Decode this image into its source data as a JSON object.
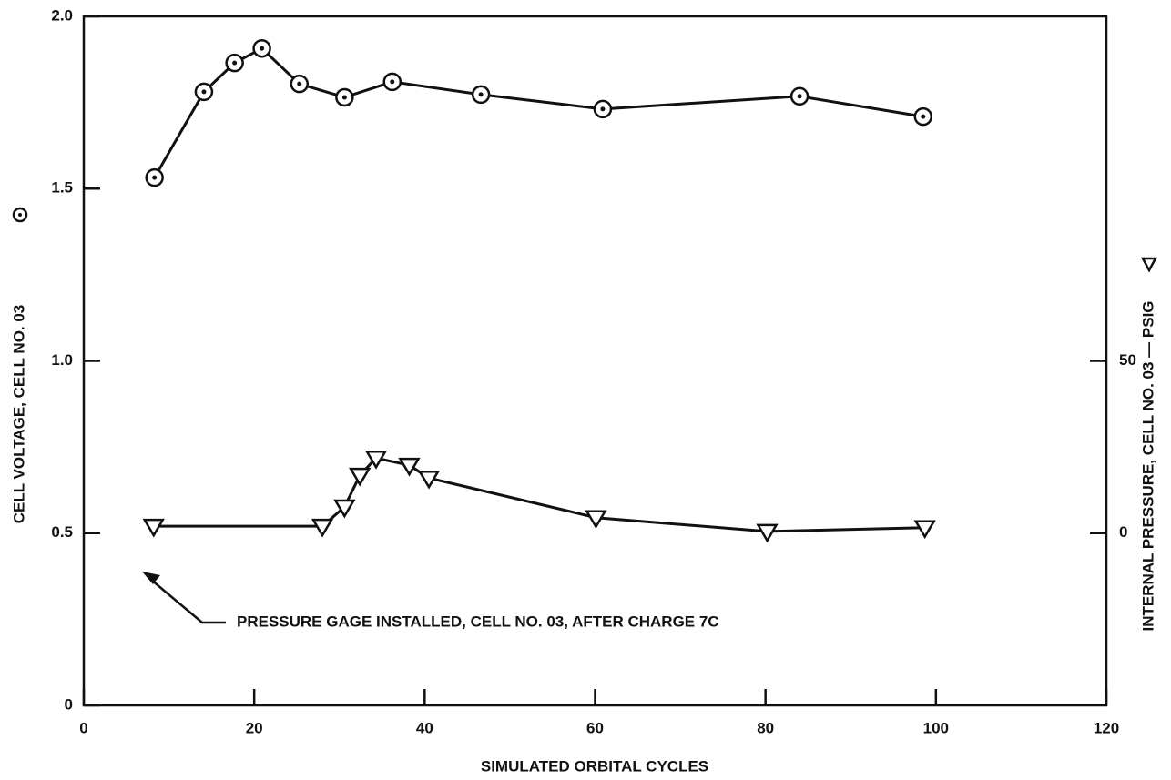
{
  "chart_data": {
    "type": "line",
    "xlabel": "SIMULATED ORBITAL CYCLES",
    "ylabel": "CELL VOLTAGE, CELL NO. 03",
    "y2label": "INTERNAL PRESSURE, CELL NO. 03 — PSIG",
    "annotation": "PRESSURE GAGE INSTALLED, CELL NO. 03, AFTER CHARGE 7C",
    "xlim": [
      0,
      120
    ],
    "xticks": [
      0,
      20,
      40,
      60,
      80,
      100,
      120
    ],
    "ylim": [
      0,
      2
    ],
    "yticks": [
      0,
      0.5,
      {
        "value": 1,
        "label": "1.0"
      },
      1.5,
      {
        "value": 2,
        "label": "2.0"
      }
    ],
    "y2lim": [
      -50,
      150
    ],
    "y2ticks": [
      0,
      50
    ],
    "series": [
      {
        "color": "#111111",
        "marker": "circle",
        "x": [
          8.3,
          14.1,
          17.7,
          20.9,
          25.3,
          30.6,
          36.2,
          46.6,
          60.9,
          84.0,
          98.5
        ],
        "values": [
          1.532,
          1.781,
          1.865,
          1.907,
          1.804,
          1.765,
          1.81,
          1.773,
          1.731,
          1.768,
          1.709
        ]
      },
      {
        "color": "#111111",
        "marker": "triangle",
        "axis": "y2",
        "x": [
          8.2,
          28.0,
          30.6,
          32.4,
          34.3,
          38.2,
          40.5,
          60.1,
          80.2,
          98.7
        ],
        "values": [
          2,
          2,
          7.6,
          16.8,
          21.8,
          19.7,
          16,
          4.5,
          0.5,
          1.6
        ]
      }
    ]
  }
}
